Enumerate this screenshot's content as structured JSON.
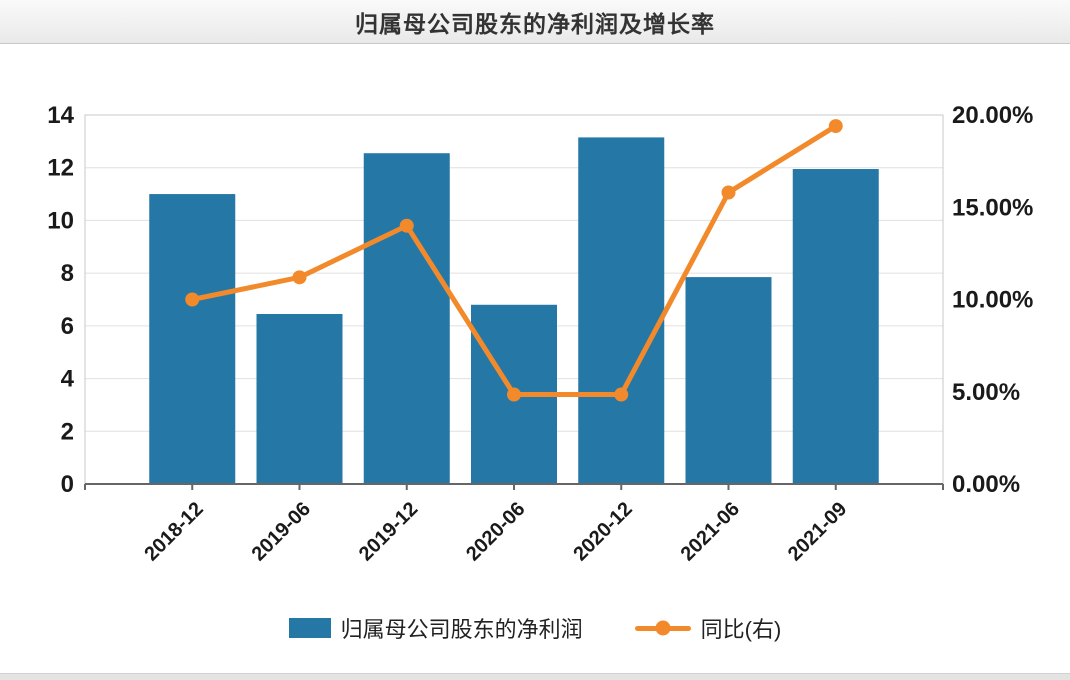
{
  "chart_data": {
    "type": "bar",
    "title": "归属母公司股东的净利润及增长率",
    "categories": [
      "2018-12",
      "2019-06",
      "2019-12",
      "2020-06",
      "2020-12",
      "2021-06",
      "2021-09"
    ],
    "series": [
      {
        "name": "归属母公司股东的净利润",
        "kind": "bar",
        "axis": "left",
        "color": "#2577a6",
        "values": [
          11.0,
          6.45,
          12.55,
          6.8,
          13.15,
          7.85,
          11.95
        ]
      },
      {
        "name": "同比(右)",
        "kind": "line",
        "axis": "right",
        "color": "#f28a2b",
        "unit": "%",
        "values": [
          10.0,
          11.2,
          14.0,
          4.85,
          4.85,
          15.8,
          19.4
        ]
      }
    ],
    "y_left": {
      "min": 0,
      "max": 14,
      "step": 2,
      "ticks": [
        "0",
        "2",
        "4",
        "6",
        "8",
        "10",
        "12",
        "14"
      ]
    },
    "y_right": {
      "min": 0,
      "max": 20,
      "step": 5,
      "ticks": [
        "0.00%",
        "5.00%",
        "10.00%",
        "15.00%",
        "20.00%"
      ]
    },
    "grid": true,
    "legend_position": "bottom",
    "legend": [
      {
        "label": "归属母公司股东的净利润",
        "marker": "square"
      },
      {
        "label": "同比(右)",
        "marker": "line-dot"
      }
    ]
  },
  "colors": {
    "bar": "#2577a6",
    "line": "#f28a2b",
    "gridline": "#e0e0e0",
    "frame": "#c8c8c8",
    "axis_line": "#666666",
    "tick_text": "#1a1a1a",
    "header_border": "#c9c9c9"
  }
}
